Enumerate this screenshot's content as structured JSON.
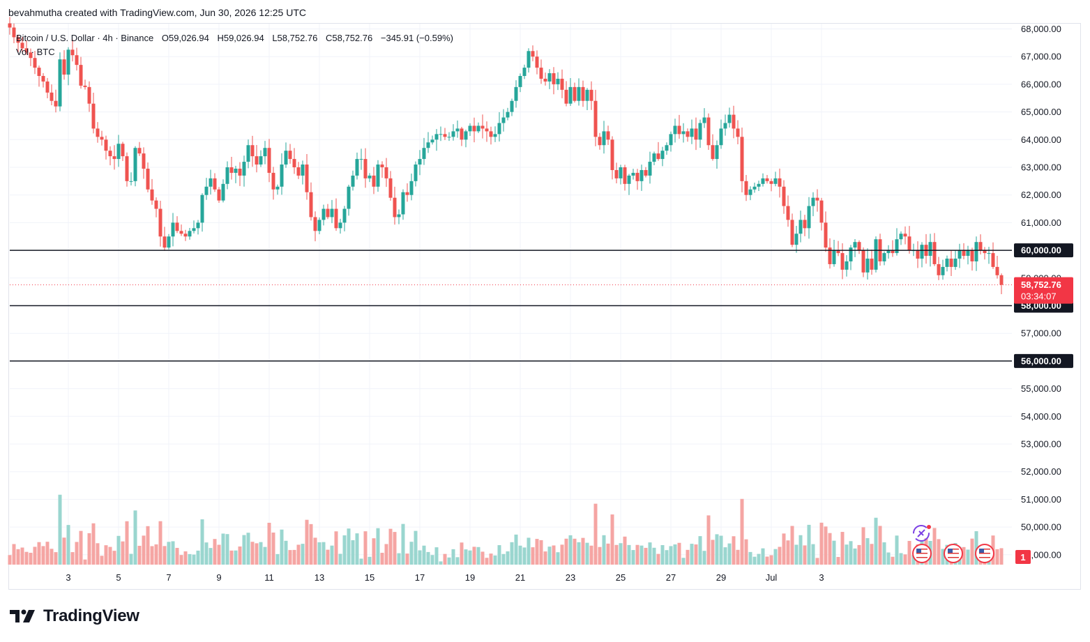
{
  "header": {
    "caption": "bevahmutha created with TradingView.com, Jun 30, 2026 12:25 UTC"
  },
  "legend": {
    "symbol": "Bitcoin / U.S. Dollar · 4h · Binance",
    "open": "O59,026.94",
    "high": "H59,026.94",
    "low": "L58,752.76",
    "close": "C58,752.76",
    "change": "−345.91 (−0.59%)",
    "volume_label": "Vol · BTC"
  },
  "brand": {
    "name": "TradingView",
    "logo_icon": "tradingview-logo-icon"
  },
  "colors": {
    "up": "#26a69a",
    "down": "#ef5350",
    "up_volume": "#9ad6cf",
    "down_volume": "#f5a5a3",
    "price_label": "#f23645",
    "line": "#131722"
  },
  "chart_data": {
    "type": "candlestick",
    "title": "Bitcoin / U.S. Dollar · 4h · Binance",
    "interval": "4h",
    "ylim": [
      49500,
      68200
    ],
    "y_ticks": [
      68000,
      67000,
      66000,
      65000,
      64000,
      63000,
      62000,
      61000,
      60000,
      59000,
      58000,
      57000,
      56000,
      55000,
      54000,
      53000,
      52000,
      51000,
      50000,
      49000
    ],
    "y_tick_labels": [
      "68,000.00",
      "67,000.00",
      "66,000.00",
      "65,000.00",
      "64,000.00",
      "63,000.00",
      "62,000.00",
      "61,000.00",
      "60,000.00",
      "59,000.00",
      "58,000.00",
      "57,000.00",
      "56,000.00",
      "55,000.00",
      "54,000.00",
      "53,000.00",
      "52,000.00",
      "51,000.00",
      "50,000.00",
      "49,000.00"
    ],
    "x_ticks": [
      {
        "label": "3",
        "index": 14
      },
      {
        "label": "5",
        "index": 26
      },
      {
        "label": "7",
        "index": 38
      },
      {
        "label": "9",
        "index": 50
      },
      {
        "label": "11",
        "index": 62
      },
      {
        "label": "13",
        "index": 74
      },
      {
        "label": "15",
        "index": 86
      },
      {
        "label": "17",
        "index": 98
      },
      {
        "label": "19",
        "index": 110
      },
      {
        "label": "21",
        "index": 122
      },
      {
        "label": "23",
        "index": 134
      },
      {
        "label": "25",
        "index": 146
      },
      {
        "label": "27",
        "index": 158
      },
      {
        "label": "29",
        "index": 170
      },
      {
        "label": "Jul",
        "index": 182
      },
      {
        "label": "3",
        "index": 194
      }
    ],
    "horizontal_lines": [
      {
        "price": 60000,
        "label": "60,000.00"
      },
      {
        "price": 58000,
        "label": "58,000.00"
      },
      {
        "price": 56000,
        "label": "56,000.00"
      }
    ],
    "last_price": {
      "price": 58752.76,
      "label": "58,752.76",
      "countdown": "03:34:07"
    },
    "closes": [
      68050,
      67700,
      67500,
      67300,
      67150,
      66950,
      66600,
      66300,
      66100,
      65700,
      65400,
      65200,
      66900,
      66350,
      67250,
      67050,
      66700,
      65950,
      65900,
      65300,
      64400,
      64100,
      64000,
      63600,
      63400,
      63300,
      63850,
      63400,
      62500,
      62500,
      63700,
      63500,
      62950,
      62200,
      61800,
      61500,
      60500,
      60100,
      60500,
      61000,
      60700,
      60600,
      60500,
      60700,
      60800,
      61000,
      62000,
      62300,
      62600,
      62200,
      61800,
      62400,
      63000,
      62800,
      62950,
      62700,
      63200,
      63800,
      63400,
      63100,
      63400,
      63700,
      62800,
      62200,
      62300,
      63100,
      63600,
      63300,
      63000,
      62700,
      63100,
      62100,
      61200,
      60700,
      61100,
      61500,
      61200,
      61500,
      60800,
      61000,
      61500,
      62300,
      62700,
      63300,
      63300,
      62600,
      62700,
      62300,
      63100,
      63000,
      62600,
      61900,
      61200,
      61300,
      62100,
      62000,
      62500,
      63100,
      63300,
      63700,
      63900,
      64000,
      64200,
      64200,
      64100,
      64100,
      64300,
      64400,
      64000,
      64300,
      64500,
      64300,
      64500,
      64400,
      64300,
      64100,
      64200,
      64600,
      64800,
      65000,
      65400,
      65900,
      66300,
      66600,
      67200,
      67000,
      66600,
      66200,
      66100,
      66400,
      66000,
      66200,
      65800,
      65300,
      65900,
      65400,
      65900,
      65400,
      65800,
      65400,
      64100,
      63800,
      64300,
      64000,
      62900,
      62600,
      63000,
      62400,
      62700,
      62800,
      62500,
      62900,
      62700,
      63200,
      63500,
      63300,
      63600,
      63800,
      64200,
      64500,
      64200,
      64300,
      64100,
      64400,
      64000,
      64600,
      64800,
      63800,
      63300,
      63800,
      64400,
      64600,
      64900,
      64400,
      64100,
      62500,
      62000,
      62200,
      62300,
      62400,
      62600,
      62500,
      62400,
      62600,
      62300,
      61600,
      61100,
      60200,
      60600,
      61100,
      60800,
      61600,
      61900,
      61800,
      61000,
      60100,
      59500,
      60000,
      59900,
      59300,
      59600,
      60100,
      60300,
      60000,
      59200,
      59700,
      59300,
      60400,
      59600,
      59900,
      60000,
      59900,
      60400,
      60600,
      60500,
      60000,
      60000,
      59700,
      60200,
      59800,
      60300,
      59500,
      59100,
      59400,
      59700,
      59400,
      59700,
      60000,
      59800,
      60000,
      59600,
      60300,
      60000,
      59900,
      59900,
      59400,
      59100,
      58752.76
    ],
    "volume_label": "Vol · BTC"
  }
}
